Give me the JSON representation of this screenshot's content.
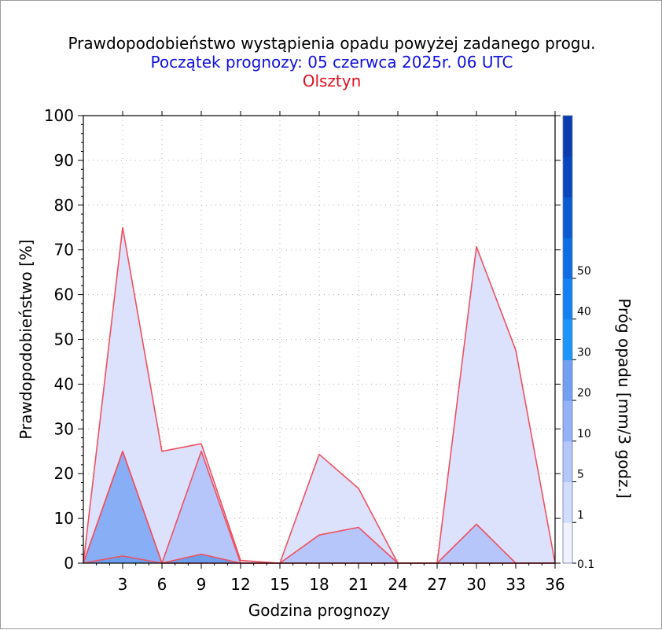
{
  "title": "Prawdopodobieństwo wystąpienia opadu powyżej zadanego progu.",
  "subtitle": "Początek prognozy: 05 czerwca 2025r. 06 UTC",
  "location": "Olsztyn",
  "colors": {
    "title": "#000000",
    "subtitle": "#1010e0",
    "location": "#e01020",
    "series_line": "#f05060",
    "grid": "#b0b0b0"
  },
  "chart_data": {
    "type": "area",
    "xlabel": "Godzina prognozy",
    "ylabel": "Prawdopodobieństwo [%]",
    "xlim": [
      0,
      36
    ],
    "ylim": [
      0,
      100
    ],
    "xticks": [
      3,
      6,
      9,
      12,
      15,
      18,
      21,
      24,
      27,
      30,
      33,
      36
    ],
    "yticks": [
      0,
      10,
      20,
      30,
      40,
      50,
      60,
      70,
      80,
      90,
      100
    ],
    "grid": true,
    "x": [
      0,
      3,
      6,
      9,
      12,
      15,
      18,
      21,
      24,
      27,
      30,
      33,
      36
    ],
    "series": [
      {
        "threshold": "0.1",
        "color": "#dce2fc",
        "values": [
          0,
          75,
          25,
          26.7,
          0.6,
          0,
          24.3,
          16.7,
          0,
          0,
          70.7,
          47.6,
          0
        ]
      },
      {
        "threshold": "1",
        "color": "#b6c6fa",
        "values": [
          0,
          25,
          0,
          25,
          0,
          0,
          6.3,
          8,
          0,
          0,
          8.7,
          0,
          0
        ]
      },
      {
        "threshold": "5",
        "color": "#88aff5",
        "values": [
          0,
          25,
          0,
          0,
          0,
          0,
          0,
          0,
          0,
          0,
          0,
          0,
          0
        ]
      },
      {
        "threshold": "10",
        "color": "#6c9eed",
        "values": [
          0,
          1.6,
          0,
          2,
          0,
          0,
          0,
          0,
          0,
          0,
          0,
          0,
          0
        ]
      }
    ],
    "colorbar": {
      "label": "Próg opadu [mm/3 godz.]",
      "labels": [
        "0.1",
        "1",
        "5",
        "10",
        "20",
        "30",
        "40",
        "50"
      ],
      "colors": [
        "#f0f2fe",
        "#d2dcfc",
        "#b4c6fa",
        "#94b2f7",
        "#74a0f2",
        "#1c96f8",
        "#1282f0",
        "#0c6ee0",
        "#0a5ad0",
        "#0846bc",
        "#0a3cae"
      ]
    }
  }
}
